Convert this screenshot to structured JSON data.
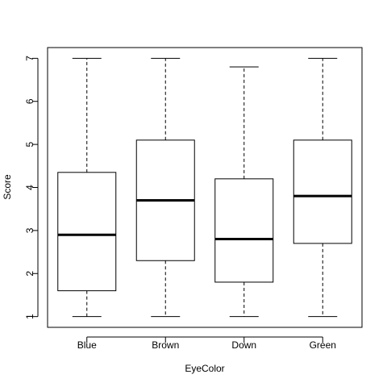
{
  "chart_data": {
    "type": "boxplot",
    "title": "",
    "xlabel": "EyeColor",
    "ylabel": "Score",
    "ylim": [
      0.75,
      7.25
    ],
    "yticks": [
      1,
      2,
      3,
      4,
      5,
      6,
      7
    ],
    "categories": [
      "Blue",
      "Brown",
      "Down",
      "Green"
    ],
    "boxes": [
      {
        "min": 1,
        "q1": 1.6,
        "median": 2.9,
        "q3": 4.35,
        "max": 7
      },
      {
        "min": 1,
        "q1": 2.3,
        "median": 3.7,
        "q3": 5.1,
        "max": 7
      },
      {
        "min": 1,
        "q1": 1.8,
        "median": 2.8,
        "q3": 4.2,
        "max": 6.8
      },
      {
        "min": 1,
        "q1": 2.7,
        "median": 3.8,
        "q3": 5.1,
        "max": 7
      }
    ],
    "grid": false
  }
}
